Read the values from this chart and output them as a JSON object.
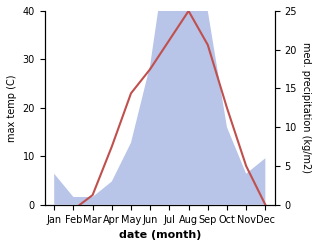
{
  "months": [
    "Jan",
    "Feb",
    "Mar",
    "Apr",
    "May",
    "Jun",
    "Jul",
    "Aug",
    "Sep",
    "Oct",
    "Nov",
    "Dec"
  ],
  "temperature": [
    -1,
    -1,
    2,
    12,
    23,
    28,
    34,
    40,
    33,
    20,
    8,
    0
  ],
  "precipitation": [
    4,
    1,
    1,
    3,
    8,
    18,
    35,
    36,
    25,
    10,
    4,
    6
  ],
  "temp_color": "#c0504d",
  "precip_color_fill": "#b8c4e8",
  "temp_ylim": [
    0,
    40
  ],
  "precip_ylim": [
    0,
    25
  ],
  "precip_scale_max": 40,
  "xlabel": "date (month)",
  "ylabel_left": "max temp (C)",
  "ylabel_right": "med. precipitation (kg/m2)",
  "left_yticks": [
    0,
    10,
    20,
    30,
    40
  ],
  "right_yticks": [
    0,
    5,
    10,
    15,
    20,
    25
  ],
  "figsize": [
    3.18,
    2.47
  ],
  "dpi": 100
}
